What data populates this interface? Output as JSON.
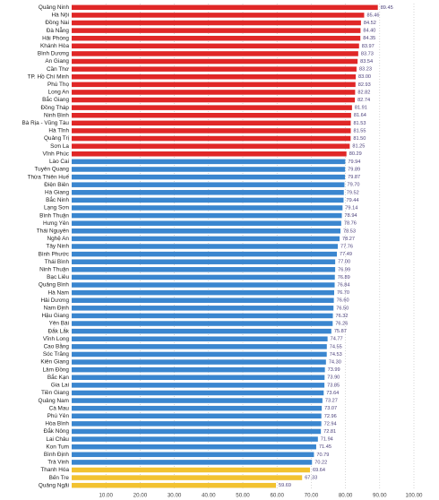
{
  "chart_data": {
    "type": "bar",
    "orientation": "horizontal",
    "categories": [
      "Quảng Ninh",
      "Hà Nội",
      "Đồng Nai",
      "Đà Nẵng",
      "Hải Phòng",
      "Khánh Hòa",
      "Bình Dương",
      "An Giang",
      "Cần Thơ",
      "TP. Hồ Chí Minh",
      "Phú Thọ",
      "Long An",
      "Bắc Giang",
      "Đồng Tháp",
      "Ninh Bình",
      "Bà Rịa - Vũng Tàu",
      "Hà Tĩnh",
      "Quảng Trị",
      "Sơn La",
      "Vĩnh Phúc",
      "Lào Cai",
      "Tuyên Quang",
      "Thừa Thiên Huế",
      "Điện Biên",
      "Hà Giang",
      "Bắc Ninh",
      "Lạng Sơn",
      "Bình Thuận",
      "Hưng Yên",
      "Thái Nguyên",
      "Nghệ An",
      "Tây Ninh",
      "Bình Phước",
      "Thái Bình",
      "Ninh Thuận",
      "Bạc Liêu",
      "Quảng Bình",
      "Hà Nam",
      "Hải Dương",
      "Nam Định",
      "Hậu Giang",
      "Yên Bái",
      "Đắk Lắk",
      "Vĩnh Long",
      "Cao Bằng",
      "Sóc Trăng",
      "Kiên Giang",
      "Lâm Đồng",
      "Bắc Kạn",
      "Gia Lai",
      "Tiền Giang",
      "Quảng Nam",
      "Cà Mau",
      "Phú Yên",
      "Hòa Bình",
      "Đắk Nông",
      "Lai Châu",
      "Kon Tum",
      "Bình Định",
      "Trà Vinh",
      "Thanh Hóa",
      "Bến Tre",
      "Quảng Ngãi"
    ],
    "values": [
      89.45,
      85.46,
      84.52,
      84.4,
      84.35,
      83.97,
      83.73,
      83.54,
      83.23,
      83,
      82.93,
      82.82,
      82.74,
      81.91,
      81.64,
      81.53,
      81.55,
      81.5,
      81.25,
      80.29,
      79.94,
      79.89,
      79.87,
      79.7,
      79.52,
      79.44,
      79.14,
      78.94,
      78.76,
      78.53,
      78.27,
      77.76,
      77.49,
      77,
      76.99,
      76.89,
      76.84,
      76.7,
      76.6,
      76.5,
      76.32,
      76.26,
      75.87,
      74.77,
      74.55,
      74.53,
      74.3,
      73.99,
      73.9,
      73.85,
      73.64,
      73.27,
      73.07,
      72.96,
      72.94,
      72.81,
      71.94,
      71.45,
      70.79,
      70.22,
      69.64,
      67.33,
      59.69
    ],
    "value_labels": [
      "89.45",
      "85.46",
      "84.52",
      "84.40",
      "84.35",
      "83.97",
      "83.73",
      "83.54",
      "83.23",
      "83.00",
      "82.93",
      "82.82",
      "82.74",
      "81.91",
      "81.64",
      "81.53",
      "81.55",
      "81.50",
      "81.25",
      "80.29",
      "79.94",
      "79.89",
      "79.87",
      "79.70",
      "79.52",
      "79.44",
      "79.14",
      "78.94",
      "78.76",
      "78.53",
      "78.27",
      "77.76",
      "77.49",
      "77.00",
      "76.99",
      "76.89",
      "76.84",
      "76.70",
      "76.60",
      "76.50",
      "76.32",
      "76.26",
      "75.87",
      "74.77",
      "74.55",
      "74.53",
      "74.30",
      "73.99",
      "73.90",
      "73.85",
      "73.64",
      "73.27",
      "73.07",
      "72.96",
      "72.94",
      "72.81",
      "71.94",
      "71.45",
      "70.79",
      "70.22",
      "69.64",
      "67.33",
      "59.69"
    ],
    "colors": [
      "#e02727",
      "#e02727",
      "#e02727",
      "#e02727",
      "#e02727",
      "#e02727",
      "#e02727",
      "#e02727",
      "#e02727",
      "#e02727",
      "#e02727",
      "#e02727",
      "#e02727",
      "#e02727",
      "#e02727",
      "#e02727",
      "#e02727",
      "#e02727",
      "#e02727",
      "#e02727",
      "#3a86cf",
      "#3a86cf",
      "#3a86cf",
      "#3a86cf",
      "#3a86cf",
      "#3a86cf",
      "#3a86cf",
      "#3a86cf",
      "#3a86cf",
      "#3a86cf",
      "#3a86cf",
      "#3a86cf",
      "#3a86cf",
      "#3a86cf",
      "#3a86cf",
      "#3a86cf",
      "#3a86cf",
      "#3a86cf",
      "#3a86cf",
      "#3a86cf",
      "#3a86cf",
      "#3a86cf",
      "#3a86cf",
      "#3a86cf",
      "#3a86cf",
      "#3a86cf",
      "#3a86cf",
      "#3a86cf",
      "#3a86cf",
      "#3a86cf",
      "#3a86cf",
      "#3a86cf",
      "#3a86cf",
      "#3a86cf",
      "#3a86cf",
      "#3a86cf",
      "#3a86cf",
      "#3a86cf",
      "#3a86cf",
      "#3a86cf",
      "#f2c230",
      "#f2c230",
      "#f2c230"
    ],
    "xlim": [
      0,
      100
    ],
    "xticks": [
      {
        "value": 10,
        "label": "10.00"
      },
      {
        "value": 20,
        "label": "20.00"
      },
      {
        "value": 30,
        "label": "30.00"
      },
      {
        "value": 40,
        "label": "40.00"
      },
      {
        "value": 50,
        "label": "50.00"
      },
      {
        "value": 60,
        "label": "60.00"
      },
      {
        "value": 70,
        "label": "70.00"
      },
      {
        "value": 80,
        "label": "80.00"
      },
      {
        "value": 90,
        "label": "90.00"
      },
      {
        "value": 100,
        "label": "100.00"
      }
    ],
    "grid": true
  }
}
